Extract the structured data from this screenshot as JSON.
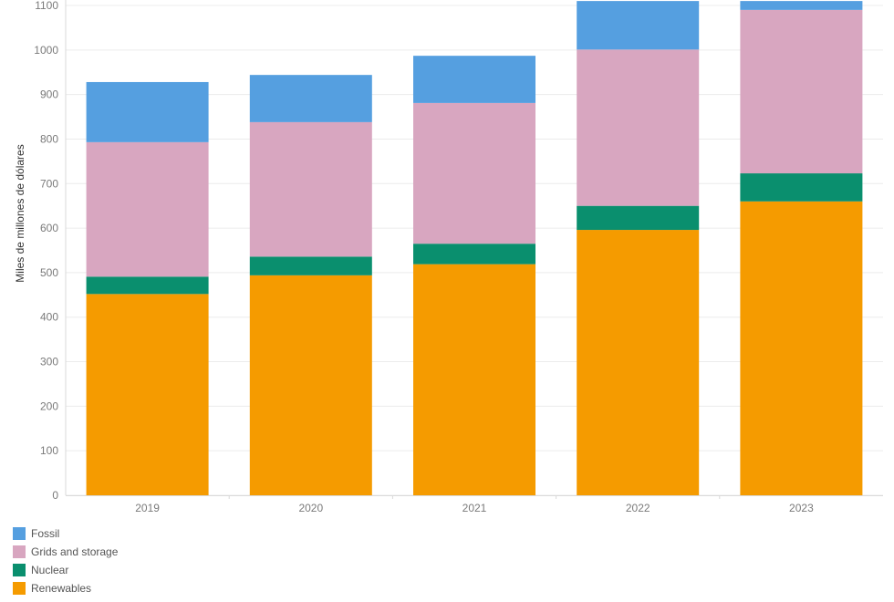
{
  "chart_data": {
    "type": "bar",
    "stacked": true,
    "categories": [
      "2019",
      "2020",
      "2021",
      "2022",
      "2023"
    ],
    "series": [
      {
        "name": "Renewables",
        "color": "#f59b00",
        "values": [
          452,
          494,
          519,
          596,
          660
        ]
      },
      {
        "name": "Nuclear",
        "color": "#0a8f6e",
        "values": [
          39,
          42,
          46,
          54,
          63
        ]
      },
      {
        "name": "Grids and storage",
        "color": "#d8a6c0",
        "values": [
          302,
          302,
          316,
          351,
          367
        ]
      },
      {
        "name": "Fossil",
        "color": "#559fe0",
        "values": [
          135,
          106,
          106,
          109,
          20
        ]
      }
    ],
    "ylabel": "Miles de millones de dólares",
    "ylim": [
      0,
      1100
    ],
    "yticks": [
      0,
      100,
      200,
      300,
      400,
      500,
      600,
      700,
      800,
      900,
      1000,
      1100
    ],
    "grid": true,
    "legend_position": "bottom-left"
  },
  "legend": {
    "items": [
      {
        "label": "Fossil",
        "color": "#559fe0"
      },
      {
        "label": "Grids and storage",
        "color": "#d8a6c0"
      },
      {
        "label": "Nuclear",
        "color": "#0a8f6e"
      },
      {
        "label": "Renewables",
        "color": "#f59b00"
      }
    ]
  }
}
